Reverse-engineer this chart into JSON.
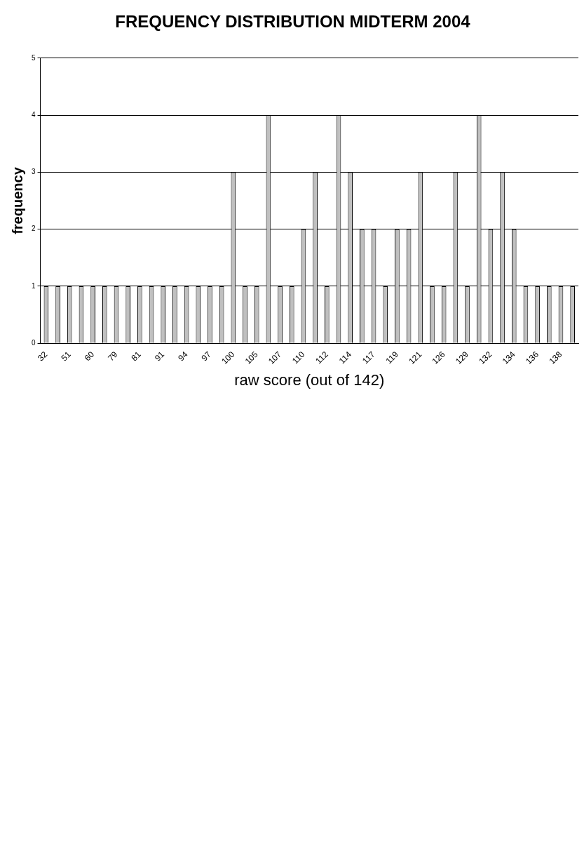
{
  "chart_data": {
    "type": "bar",
    "title": "FREQUENCY DISTRIBUTION MIDTERM 2004",
    "xlabel": "raw score (out of 142)",
    "ylabel": "frequency",
    "categories": [
      "32",
      null,
      "51",
      null,
      "60",
      null,
      "79",
      null,
      "81",
      null,
      "91",
      null,
      "94",
      null,
      "97",
      null,
      "100",
      null,
      "105",
      null,
      "107",
      null,
      "110",
      null,
      "112",
      null,
      "114",
      null,
      "117",
      null,
      "119",
      null,
      "121",
      null,
      "126",
      null,
      "129",
      null,
      "132",
      null,
      "134",
      null,
      "136",
      null,
      "138",
      null
    ],
    "values": [
      1,
      1,
      1,
      1,
      1,
      1,
      1,
      1,
      1,
      1,
      1,
      1,
      1,
      1,
      1,
      1,
      3,
      1,
      1,
      4,
      1,
      1,
      2,
      3,
      1,
      4,
      3,
      2,
      2,
      1,
      2,
      2,
      3,
      1,
      1,
      3,
      1,
      4,
      2,
      3,
      2,
      1,
      1,
      1,
      1,
      1
    ],
    "color": "#c0c0c0",
    "ylim": [
      0,
      5
    ],
    "yticks": [
      0,
      1,
      2,
      3,
      4,
      5
    ],
    "grid": "y",
    "legend": false
  }
}
